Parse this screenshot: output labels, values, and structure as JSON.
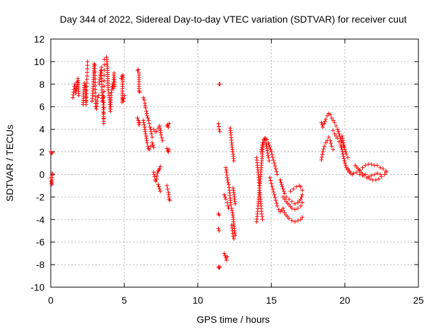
{
  "chart_data": {
    "type": "scatter",
    "title": "Day 344 of 2022, Sidereal Day-to-day VTEC variation (SDTVAR) for receiver cuut",
    "xlabel": "GPS time / hours",
    "ylabel": "SDTVAR / TECUs",
    "xlim": [
      0,
      25
    ],
    "ylim": [
      -10,
      12
    ],
    "xticks": [
      0,
      5,
      10,
      15,
      20,
      25
    ],
    "yticks": [
      -10,
      -8,
      -6,
      -4,
      -2,
      0,
      2,
      4,
      6,
      8,
      10,
      12
    ],
    "grid": true,
    "marker": "+",
    "color": "#ff0000",
    "segments": [
      [
        [
          0.0,
          2.0
        ],
        [
          0.05,
          1.9
        ],
        [
          0.1,
          1.9
        ]
      ],
      [
        [
          0.0,
          -0.3
        ],
        [
          0.03,
          -0.6
        ],
        [
          0.05,
          -0.8
        ],
        [
          0.08,
          -0.9
        ],
        [
          0.1,
          0.1
        ]
      ],
      [
        [
          1.5,
          6.8
        ],
        [
          1.55,
          7.3
        ],
        [
          1.6,
          7.8
        ],
        [
          1.65,
          8.0
        ],
        [
          1.7,
          7.2
        ],
        [
          1.75,
          7.6
        ],
        [
          1.8,
          8.2
        ],
        [
          1.85,
          8.5
        ],
        [
          1.9,
          7.0
        ]
      ],
      [
        [
          2.2,
          6.2
        ],
        [
          2.25,
          7.5
        ],
        [
          2.3,
          8.1
        ],
        [
          2.35,
          7.9
        ],
        [
          2.4,
          6.2
        ],
        [
          2.5,
          10.0
        ]
      ],
      [
        [
          2.8,
          6.5
        ],
        [
          2.85,
          7.0
        ],
        [
          2.9,
          8.2
        ],
        [
          2.95,
          9.8
        ],
        [
          3.0,
          9.7
        ],
        [
          3.05,
          6.0
        ],
        [
          3.1,
          5.8
        ],
        [
          3.15,
          6.5
        ],
        [
          3.2,
          6.8
        ],
        [
          3.25,
          7.0
        ]
      ],
      [
        [
          3.3,
          8.0
        ],
        [
          3.35,
          8.6
        ],
        [
          3.4,
          9.2
        ],
        [
          3.45,
          9.5
        ],
        [
          3.5,
          6.5
        ],
        [
          3.55,
          7.0
        ],
        [
          3.6,
          4.5
        ],
        [
          3.65,
          10.2
        ]
      ],
      [
        [
          3.8,
          10.4
        ],
        [
          3.82,
          10.0
        ],
        [
          3.85,
          9.6
        ],
        [
          3.88,
          8.5
        ],
        [
          3.9,
          7.5
        ],
        [
          3.95,
          7.2
        ],
        [
          4.0,
          6.6
        ],
        [
          4.05,
          5.6
        ],
        [
          4.1,
          7.0
        ],
        [
          4.15,
          7.5
        ],
        [
          4.2,
          8.0
        ],
        [
          4.25,
          7.6
        ],
        [
          4.3,
          9.0
        ],
        [
          4.35,
          7.8
        ]
      ],
      [
        [
          4.8,
          8.5
        ],
        [
          4.85,
          8.7
        ],
        [
          4.9,
          8.8
        ],
        [
          4.85,
          6.4
        ],
        [
          4.9,
          6.7
        ],
        [
          5.0,
          7.0
        ],
        [
          4.95,
          6.5
        ]
      ],
      [
        [
          5.9,
          9.2
        ],
        [
          5.95,
          9.3
        ],
        [
          6.0,
          9.0
        ],
        [
          6.0,
          7.4
        ],
        [
          6.05,
          7.3
        ]
      ],
      [
        [
          5.9,
          5.0
        ],
        [
          5.95,
          4.8
        ],
        [
          6.0,
          4.4
        ],
        [
          6.05,
          4.6
        ]
      ],
      [
        [
          6.3,
          6.8
        ],
        [
          6.35,
          6.6
        ],
        [
          6.4,
          6.3
        ],
        [
          6.45,
          5.9
        ],
        [
          6.5,
          5.6
        ],
        [
          6.55,
          5.2
        ],
        [
          6.6,
          5.0
        ],
        [
          6.65,
          4.8
        ],
        [
          6.7,
          4.5
        ],
        [
          6.75,
          4.2
        ],
        [
          6.8,
          4.0
        ],
        [
          6.85,
          3.6
        ],
        [
          6.9,
          3.3
        ]
      ],
      [
        [
          6.3,
          4.8
        ],
        [
          6.35,
          4.4
        ],
        [
          6.4,
          4.0
        ],
        [
          6.45,
          3.6
        ],
        [
          6.5,
          3.2
        ],
        [
          6.55,
          2.8
        ],
        [
          6.6,
          2.5
        ],
        [
          6.65,
          2.3
        ],
        [
          6.7,
          2.2
        ],
        [
          6.8,
          2.5
        ],
        [
          6.9,
          2.8
        ],
        [
          7.0,
          2.4
        ]
      ],
      [
        [
          7.0,
          4.0
        ],
        [
          7.1,
          3.8
        ],
        [
          7.2,
          3.8
        ],
        [
          7.3,
          4.1
        ],
        [
          7.4,
          4.3
        ],
        [
          7.5,
          3.5
        ],
        [
          7.6,
          3.0
        ]
      ],
      [
        [
          7.0,
          0.2
        ],
        [
          7.05,
          -0.2
        ],
        [
          7.1,
          -0.5
        ],
        [
          7.15,
          -0.6
        ],
        [
          7.2,
          -0.4
        ],
        [
          7.25,
          0.1
        ],
        [
          7.3,
          0.3
        ],
        [
          7.35,
          0.4
        ],
        [
          7.4,
          0.5
        ],
        [
          7.45,
          0.7
        ]
      ],
      [
        [
          7.3,
          -0.9
        ],
        [
          7.35,
          -1.1
        ],
        [
          7.4,
          -1.3
        ],
        [
          7.45,
          -1.5
        ]
      ],
      [
        [
          7.9,
          4.3
        ],
        [
          7.95,
          4.4
        ],
        [
          8.0,
          4.2
        ],
        [
          8.05,
          4.5
        ]
      ],
      [
        [
          7.9,
          2.3
        ],
        [
          7.95,
          2.1
        ],
        [
          8.0,
          2.0
        ],
        [
          8.05,
          2.2
        ]
      ],
      [
        [
          7.9,
          -1.0
        ],
        [
          7.95,
          -1.3
        ],
        [
          8.0,
          -1.6
        ],
        [
          8.05,
          -2.2
        ],
        [
          8.1,
          -2.3
        ]
      ],
      [
        [
          11.45,
          8.0
        ],
        [
          11.5,
          8.0
        ]
      ],
      [
        [
          11.4,
          4.5
        ],
        [
          11.45,
          4.0
        ],
        [
          11.5,
          3.8
        ]
      ],
      [
        [
          11.4,
          -3.5
        ],
        [
          11.45,
          -3.6
        ]
      ],
      [
        [
          11.4,
          -4.8
        ],
        [
          11.45,
          -5.0
        ]
      ],
      [
        [
          11.4,
          -8.2
        ],
        [
          11.45,
          -8.3
        ],
        [
          11.5,
          -8.2
        ]
      ],
      [
        [
          11.8,
          -7.0
        ],
        [
          11.85,
          -7.2
        ],
        [
          11.9,
          -7.4
        ],
        [
          11.95,
          -7.6
        ],
        [
          12.0,
          -7.3
        ]
      ],
      [
        [
          11.8,
          -1.8
        ],
        [
          11.85,
          -2.0
        ],
        [
          11.9,
          -2.2
        ],
        [
          12.0,
          -2.5
        ],
        [
          12.05,
          -2.8
        ],
        [
          12.1,
          -3.0
        ]
      ],
      [
        [
          11.9,
          0.6
        ],
        [
          11.95,
          0.2
        ],
        [
          12.0,
          -0.3
        ],
        [
          12.05,
          -0.7
        ]
      ],
      [
        [
          12.2,
          4.1
        ],
        [
          12.25,
          3.5
        ],
        [
          12.3,
          2.8
        ],
        [
          12.35,
          2.2
        ],
        [
          12.4,
          1.8
        ],
        [
          12.45,
          1.2
        ]
      ],
      [
        [
          12.1,
          -0.9
        ],
        [
          12.15,
          -1.4
        ],
        [
          12.2,
          -2.1
        ],
        [
          12.25,
          -2.7
        ],
        [
          12.3,
          -3.0
        ],
        [
          12.35,
          -3.4
        ],
        [
          12.4,
          -3.8
        ],
        [
          12.45,
          -4.4
        ],
        [
          12.5,
          -5.0
        ],
        [
          12.55,
          -5.4
        ]
      ],
      [
        [
          12.3,
          -4.5
        ],
        [
          12.35,
          -5.0
        ],
        [
          12.4,
          -5.5
        ],
        [
          12.45,
          -5.7
        ]
      ],
      [
        [
          12.4,
          -1.2
        ],
        [
          12.45,
          -1.6
        ],
        [
          12.5,
          -2.2
        ],
        [
          12.55,
          -2.6
        ]
      ],
      [
        [
          14.0,
          1.5
        ],
        [
          14.05,
          0.8
        ],
        [
          14.1,
          0.2
        ],
        [
          14.15,
          -0.5
        ],
        [
          14.2,
          -1.2
        ],
        [
          14.25,
          -2.0
        ],
        [
          14.3,
          -2.8
        ],
        [
          14.35,
          -3.5
        ],
        [
          14.4,
          -4.0
        ]
      ],
      [
        [
          14.0,
          -4.2
        ],
        [
          14.05,
          -3.5
        ],
        [
          14.1,
          -2.8
        ],
        [
          14.15,
          -2.0
        ],
        [
          14.2,
          -1.2
        ],
        [
          14.25,
          -0.4
        ],
        [
          14.3,
          0.4
        ],
        [
          14.35,
          1.2
        ],
        [
          14.4,
          2.0
        ],
        [
          14.45,
          2.6
        ],
        [
          14.5,
          3.0
        ],
        [
          14.55,
          3.2
        ],
        [
          14.6,
          3.0
        ],
        [
          14.65,
          2.7
        ],
        [
          14.7,
          2.3
        ],
        [
          14.75,
          1.9
        ],
        [
          14.8,
          1.5
        ],
        [
          14.85,
          1.2
        ]
      ],
      [
        [
          14.3,
          2.0
        ],
        [
          14.35,
          2.4
        ],
        [
          14.4,
          2.8
        ],
        [
          14.5,
          3.1
        ],
        [
          14.6,
          3.2
        ],
        [
          14.7,
          3.1
        ],
        [
          14.8,
          2.8
        ],
        [
          14.9,
          2.4
        ],
        [
          15.0,
          2.0
        ],
        [
          15.1,
          1.5
        ],
        [
          15.2,
          1.0
        ],
        [
          15.3,
          0.5
        ],
        [
          15.4,
          0.0
        ]
      ],
      [
        [
          14.9,
          -0.3
        ],
        [
          15.0,
          -0.8
        ],
        [
          15.1,
          -1.3
        ],
        [
          15.2,
          -1.8
        ],
        [
          15.3,
          -2.3
        ],
        [
          15.4,
          -2.8
        ],
        [
          15.5,
          -3.1
        ],
        [
          15.6,
          -3.3
        ],
        [
          15.7,
          -3.2
        ],
        [
          15.8,
          -3.0
        ]
      ],
      [
        [
          15.6,
          -0.5
        ],
        [
          15.7,
          -0.9
        ],
        [
          15.8,
          -1.3
        ],
        [
          15.9,
          -1.7
        ],
        [
          16.0,
          -2.0
        ],
        [
          16.2,
          -2.2
        ],
        [
          16.4,
          -2.4
        ],
        [
          16.6,
          -2.6
        ],
        [
          16.8,
          -2.5
        ],
        [
          17.0,
          -2.2
        ],
        [
          17.1,
          -1.8
        ]
      ],
      [
        [
          15.8,
          -2.0
        ],
        [
          16.0,
          -2.4
        ],
        [
          16.2,
          -2.7
        ],
        [
          16.4,
          -3.0
        ],
        [
          16.6,
          -3.1
        ],
        [
          16.8,
          -3.0
        ],
        [
          17.0,
          -2.8
        ],
        [
          17.1,
          -2.5
        ]
      ],
      [
        [
          15.8,
          -3.2
        ],
        [
          16.0,
          -3.6
        ],
        [
          16.2,
          -3.9
        ],
        [
          16.4,
          -4.1
        ],
        [
          16.6,
          -4.2
        ],
        [
          16.8,
          -4.1
        ],
        [
          17.0,
          -4.0
        ],
        [
          17.1,
          -3.8
        ]
      ],
      [
        [
          16.3,
          -1.5
        ],
        [
          16.5,
          -1.3
        ],
        [
          16.7,
          -1.1
        ],
        [
          16.9,
          -1.0
        ],
        [
          17.0,
          -1.1
        ],
        [
          17.1,
          -1.4
        ]
      ],
      [
        [
          18.4,
          1.3
        ],
        [
          18.5,
          2.0
        ],
        [
          18.6,
          2.5
        ],
        [
          18.7,
          2.8
        ],
        [
          18.8,
          3.0
        ],
        [
          18.9,
          3.3
        ],
        [
          19.0,
          3.0
        ],
        [
          19.1,
          2.5
        ],
        [
          19.2,
          2.2
        ]
      ],
      [
        [
          18.4,
          4.6
        ],
        [
          18.5,
          4.2
        ],
        [
          18.6,
          4.5
        ],
        [
          18.7,
          4.9
        ],
        [
          18.8,
          5.2
        ],
        [
          18.9,
          5.4
        ],
        [
          19.0,
          5.3
        ],
        [
          19.1,
          5.0
        ],
        [
          19.2,
          4.8
        ],
        [
          19.3,
          4.6
        ],
        [
          19.4,
          4.3
        ],
        [
          19.5,
          4.0
        ],
        [
          19.6,
          3.6
        ],
        [
          19.7,
          3.2
        ],
        [
          19.8,
          2.8
        ],
        [
          19.9,
          2.5
        ]
      ],
      [
        [
          19.2,
          3.9
        ],
        [
          19.3,
          3.6
        ],
        [
          19.4,
          3.4
        ],
        [
          19.5,
          3.2
        ],
        [
          19.6,
          2.9
        ],
        [
          19.7,
          2.6
        ],
        [
          19.8,
          2.2
        ],
        [
          19.9,
          1.6
        ],
        [
          20.0,
          1.0
        ],
        [
          20.1,
          0.6
        ],
        [
          20.2,
          0.4
        ],
        [
          20.3,
          0.2
        ]
      ],
      [
        [
          19.8,
          3.4
        ],
        [
          19.9,
          2.8
        ],
        [
          20.0,
          2.2
        ],
        [
          20.1,
          1.8
        ],
        [
          20.2,
          1.5
        ]
      ],
      [
        [
          20.2,
          0.5
        ],
        [
          20.3,
          0.3
        ],
        [
          20.4,
          0.1
        ],
        [
          20.5,
          0.0
        ],
        [
          20.6,
          0.1
        ],
        [
          20.8,
          0.2
        ],
        [
          21.0,
          0.4
        ],
        [
          21.2,
          0.6
        ],
        [
          21.4,
          0.8
        ],
        [
          21.6,
          0.9
        ],
        [
          21.8,
          0.9
        ],
        [
          22.0,
          0.8
        ],
        [
          22.2,
          0.8
        ],
        [
          22.4,
          0.6
        ],
        [
          22.6,
          0.5
        ],
        [
          22.8,
          0.3
        ]
      ],
      [
        [
          20.7,
          0.8
        ],
        [
          20.9,
          0.5
        ],
        [
          21.1,
          0.2
        ],
        [
          21.3,
          -0.1
        ],
        [
          21.5,
          -0.3
        ],
        [
          21.7,
          -0.4
        ],
        [
          21.9,
          -0.5
        ],
        [
          22.1,
          -0.5
        ],
        [
          22.3,
          -0.4
        ],
        [
          22.5,
          -0.2
        ],
        [
          22.7,
          0.0
        ],
        [
          22.8,
          0.2
        ]
      ],
      [
        [
          21.0,
          0.0
        ],
        [
          21.2,
          -0.1
        ],
        [
          21.4,
          0.0
        ],
        [
          21.6,
          -0.2
        ],
        [
          21.8,
          -0.1
        ],
        [
          22.0,
          0.0
        ],
        [
          22.2,
          0.1
        ],
        [
          22.4,
          0.0
        ]
      ]
    ]
  }
}
